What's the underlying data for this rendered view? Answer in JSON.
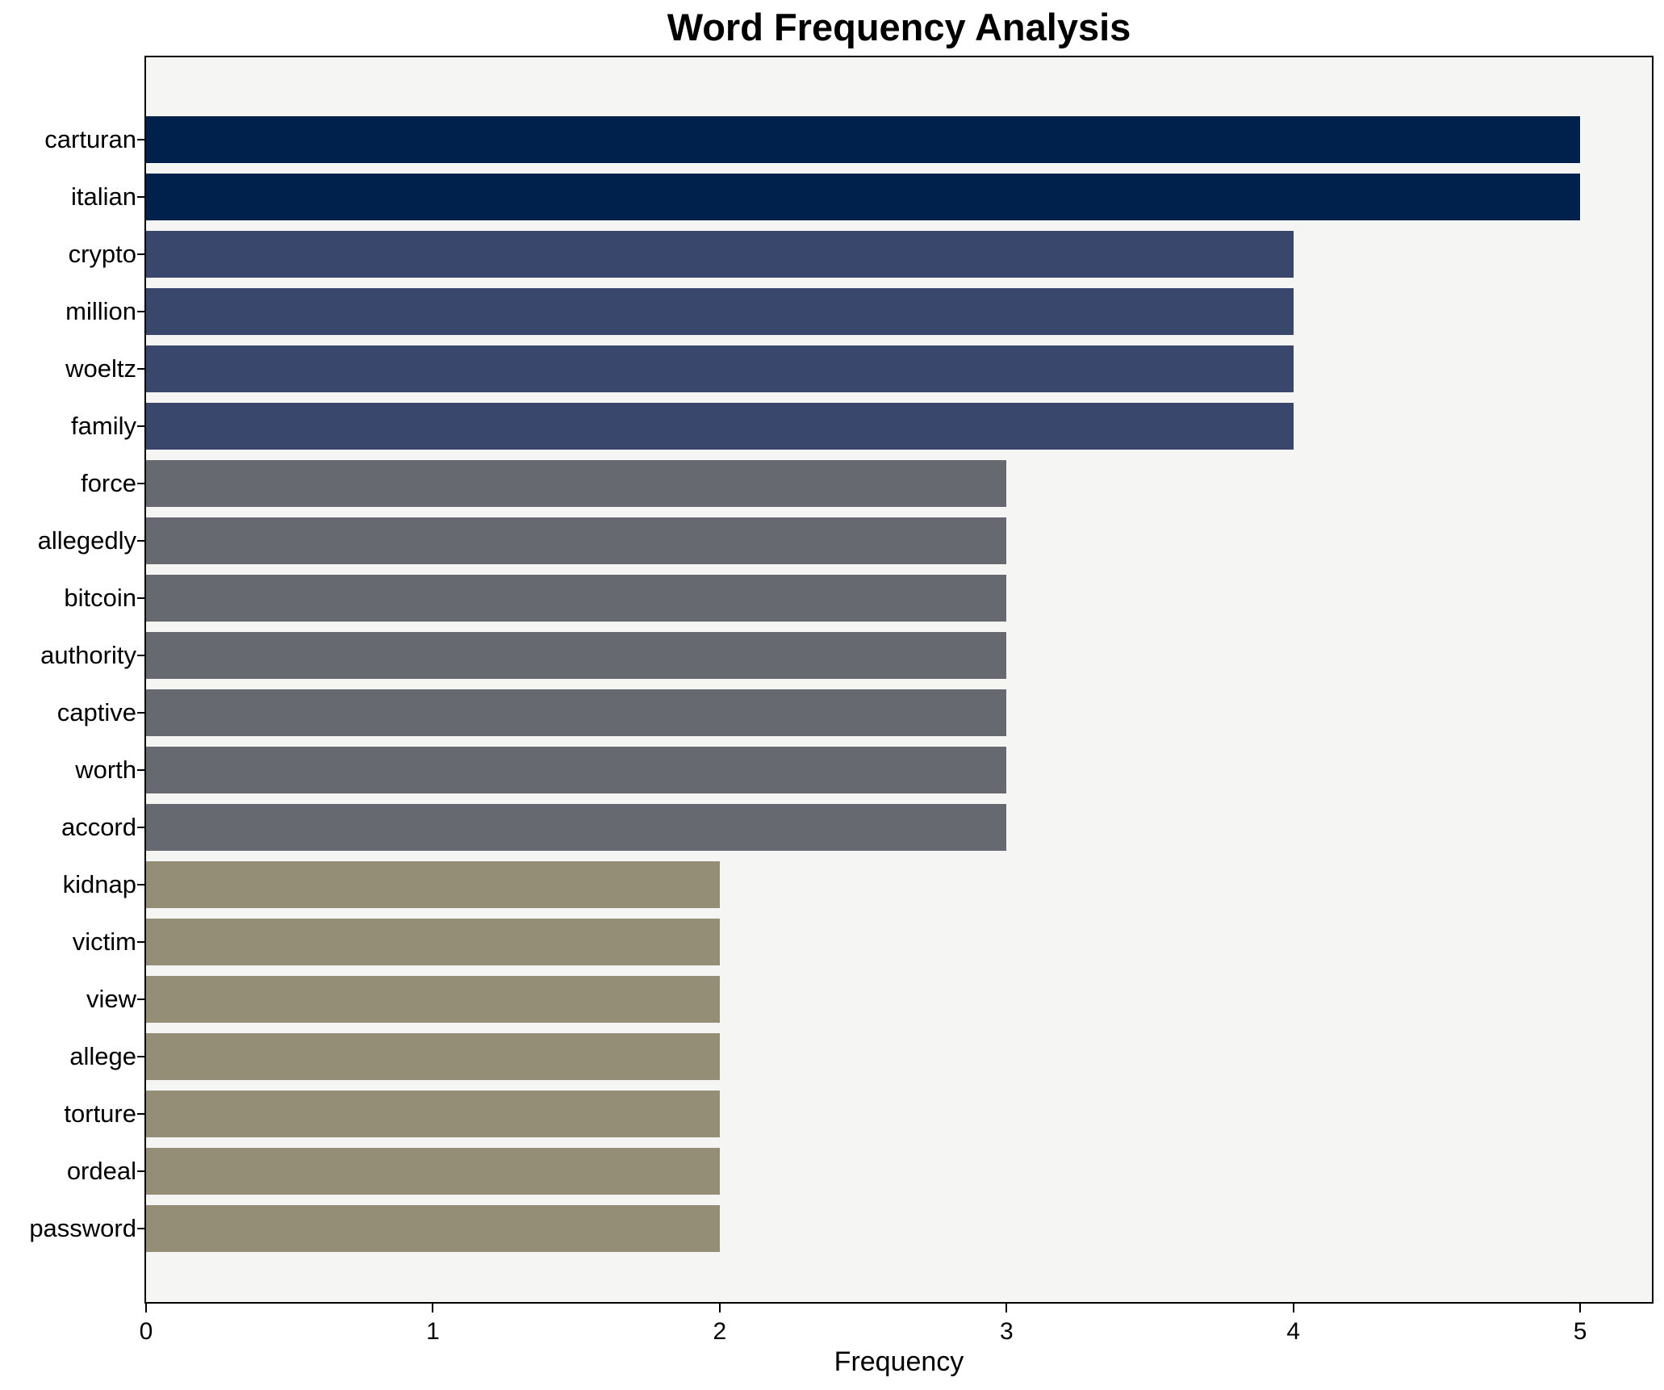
{
  "chart_data": {
    "type": "bar",
    "orientation": "horizontal",
    "title": "Word Frequency Analysis",
    "xlabel": "Frequency",
    "ylabel": "",
    "grid": false,
    "legend": false,
    "xlim": [
      0,
      5.25
    ],
    "x_ticks": [
      0,
      1,
      2,
      3,
      4,
      5
    ],
    "x_tick_labels": [
      "0",
      "1",
      "2",
      "3",
      "4",
      "5"
    ],
    "categories": [
      "carturan",
      "italian",
      "crypto",
      "million",
      "woeltz",
      "family",
      "force",
      "allegedly",
      "bitcoin",
      "authority",
      "captive",
      "worth",
      "accord",
      "kidnap",
      "victim",
      "view",
      "allege",
      "torture",
      "ordeal",
      "password"
    ],
    "values": [
      5,
      5,
      4,
      4,
      4,
      4,
      3,
      3,
      3,
      3,
      3,
      3,
      3,
      2,
      2,
      2,
      2,
      2,
      2,
      2
    ],
    "bar_colors_by_value": {
      "5": "#01214d",
      "4": "#39476c",
      "3": "#666970",
      "2": "#948e76"
    },
    "plot_background": "#f5f5f3",
    "figure_background": "#ffffff",
    "spine_color": "#000000"
  }
}
